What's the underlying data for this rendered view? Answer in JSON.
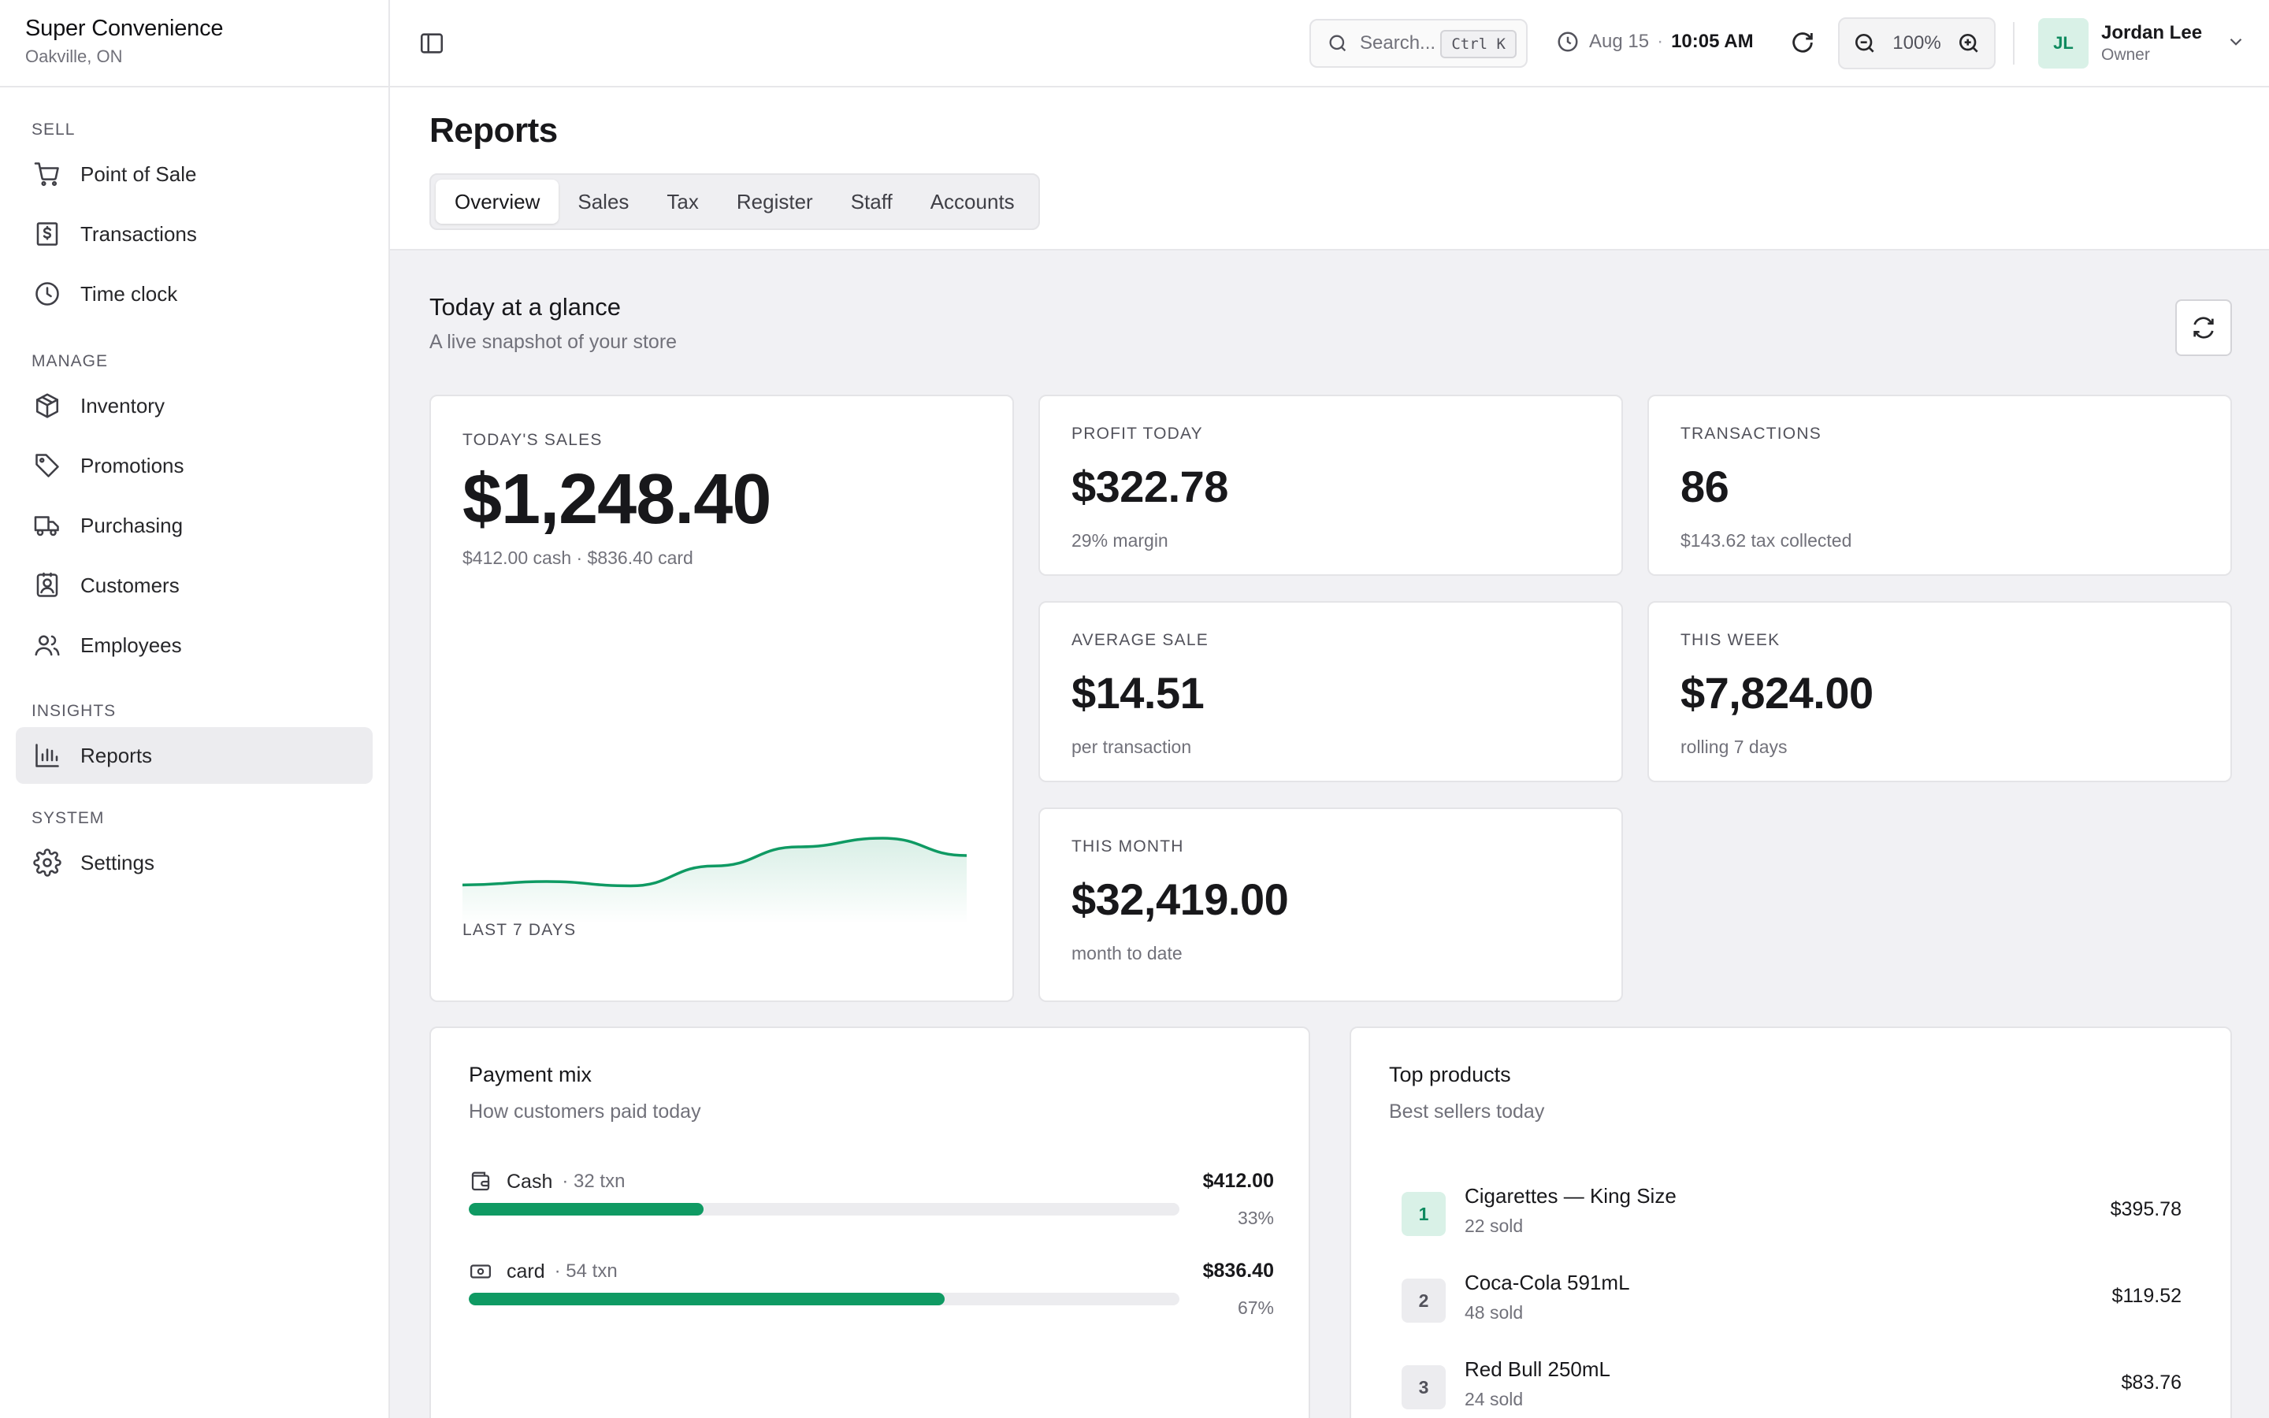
{
  "brand": {
    "name": "Super Convenience",
    "location": "Oakville, ON"
  },
  "sidebar": {
    "sections": [
      {
        "heading": "SELL",
        "items": [
          {
            "label": "Point of Sale",
            "icon": "cart-icon"
          },
          {
            "label": "Transactions",
            "icon": "receipt-icon"
          },
          {
            "label": "Time clock",
            "icon": "clock-icon"
          }
        ]
      },
      {
        "heading": "MANAGE",
        "items": [
          {
            "label": "Inventory",
            "icon": "package-icon"
          },
          {
            "label": "Promotions",
            "icon": "tag-icon"
          },
          {
            "label": "Purchasing",
            "icon": "truck-icon"
          },
          {
            "label": "Customers",
            "icon": "contact-card-icon"
          },
          {
            "label": "Employees",
            "icon": "users-icon"
          }
        ]
      },
      {
        "heading": "INSIGHTS",
        "items": [
          {
            "label": "Reports",
            "icon": "bar-chart-icon",
            "active": true
          }
        ]
      },
      {
        "heading": "SYSTEM",
        "items": [
          {
            "label": "Settings",
            "icon": "gear-icon"
          }
        ]
      }
    ]
  },
  "topbar": {
    "search_placeholder": "Search...",
    "search_shortcut": "Ctrl K",
    "date": "Aug 15",
    "separator": "·",
    "time": "10:05 AM",
    "zoom": "100%",
    "user": {
      "initials": "JL",
      "name": "Jordan Lee",
      "role": "Owner"
    }
  },
  "page": {
    "title": "Reports",
    "tabs": [
      "Overview",
      "Sales",
      "Tax",
      "Register",
      "Staff",
      "Accounts"
    ],
    "active_tab": "Overview"
  },
  "glance": {
    "title": "Today at a glance",
    "subtitle": "A live snapshot of your store"
  },
  "cards": {
    "todays_sales": {
      "label": "TODAY'S SALES",
      "value": "$1,248.40",
      "note": "$412.00 cash · $836.40 card",
      "chart_label": "LAST 7 DAYS"
    },
    "profit": {
      "label": "PROFIT TODAY",
      "value": "$322.78",
      "note": "29% margin"
    },
    "transactions": {
      "label": "TRANSACTIONS",
      "value": "86",
      "note": "$143.62 tax collected"
    },
    "average_sale": {
      "label": "AVERAGE SALE",
      "value": "$14.51",
      "note": "per transaction"
    },
    "this_week": {
      "label": "THIS WEEK",
      "value": "$7,824.00",
      "note": "rolling 7 days"
    },
    "this_month": {
      "label": "THIS MONTH",
      "value": "$32,419.00",
      "note": "month to date"
    }
  },
  "chart_data": {
    "type": "area",
    "x": [
      1,
      2,
      3,
      4,
      5,
      6,
      7
    ],
    "values": [
      980,
      1000,
      975,
      1090,
      1200,
      1250,
      1150
    ],
    "color": "#0f9a63"
  },
  "payment_mix": {
    "title": "Payment mix",
    "subtitle": "How customers paid today",
    "rows": [
      {
        "method": "Cash",
        "txn": "· 32 txn",
        "amount": "$412.00",
        "percent": "33%",
        "fraction": 0.33,
        "icon": "wallet-icon"
      },
      {
        "method": "card",
        "txn": "· 54 txn",
        "amount": "$836.40",
        "percent": "67%",
        "fraction": 0.67,
        "icon": "banknote-icon"
      }
    ]
  },
  "top_products": {
    "title": "Top products",
    "subtitle": "Best sellers today",
    "items": [
      {
        "rank": "1",
        "name": "Cigarettes — King Size",
        "sold": "22 sold",
        "amount": "$395.78"
      },
      {
        "rank": "2",
        "name": "Coca-Cola 591mL",
        "sold": "48 sold",
        "amount": "$119.52"
      },
      {
        "rank": "3",
        "name": "Red Bull 250mL",
        "sold": "24 sold",
        "amount": "$83.76"
      }
    ]
  }
}
